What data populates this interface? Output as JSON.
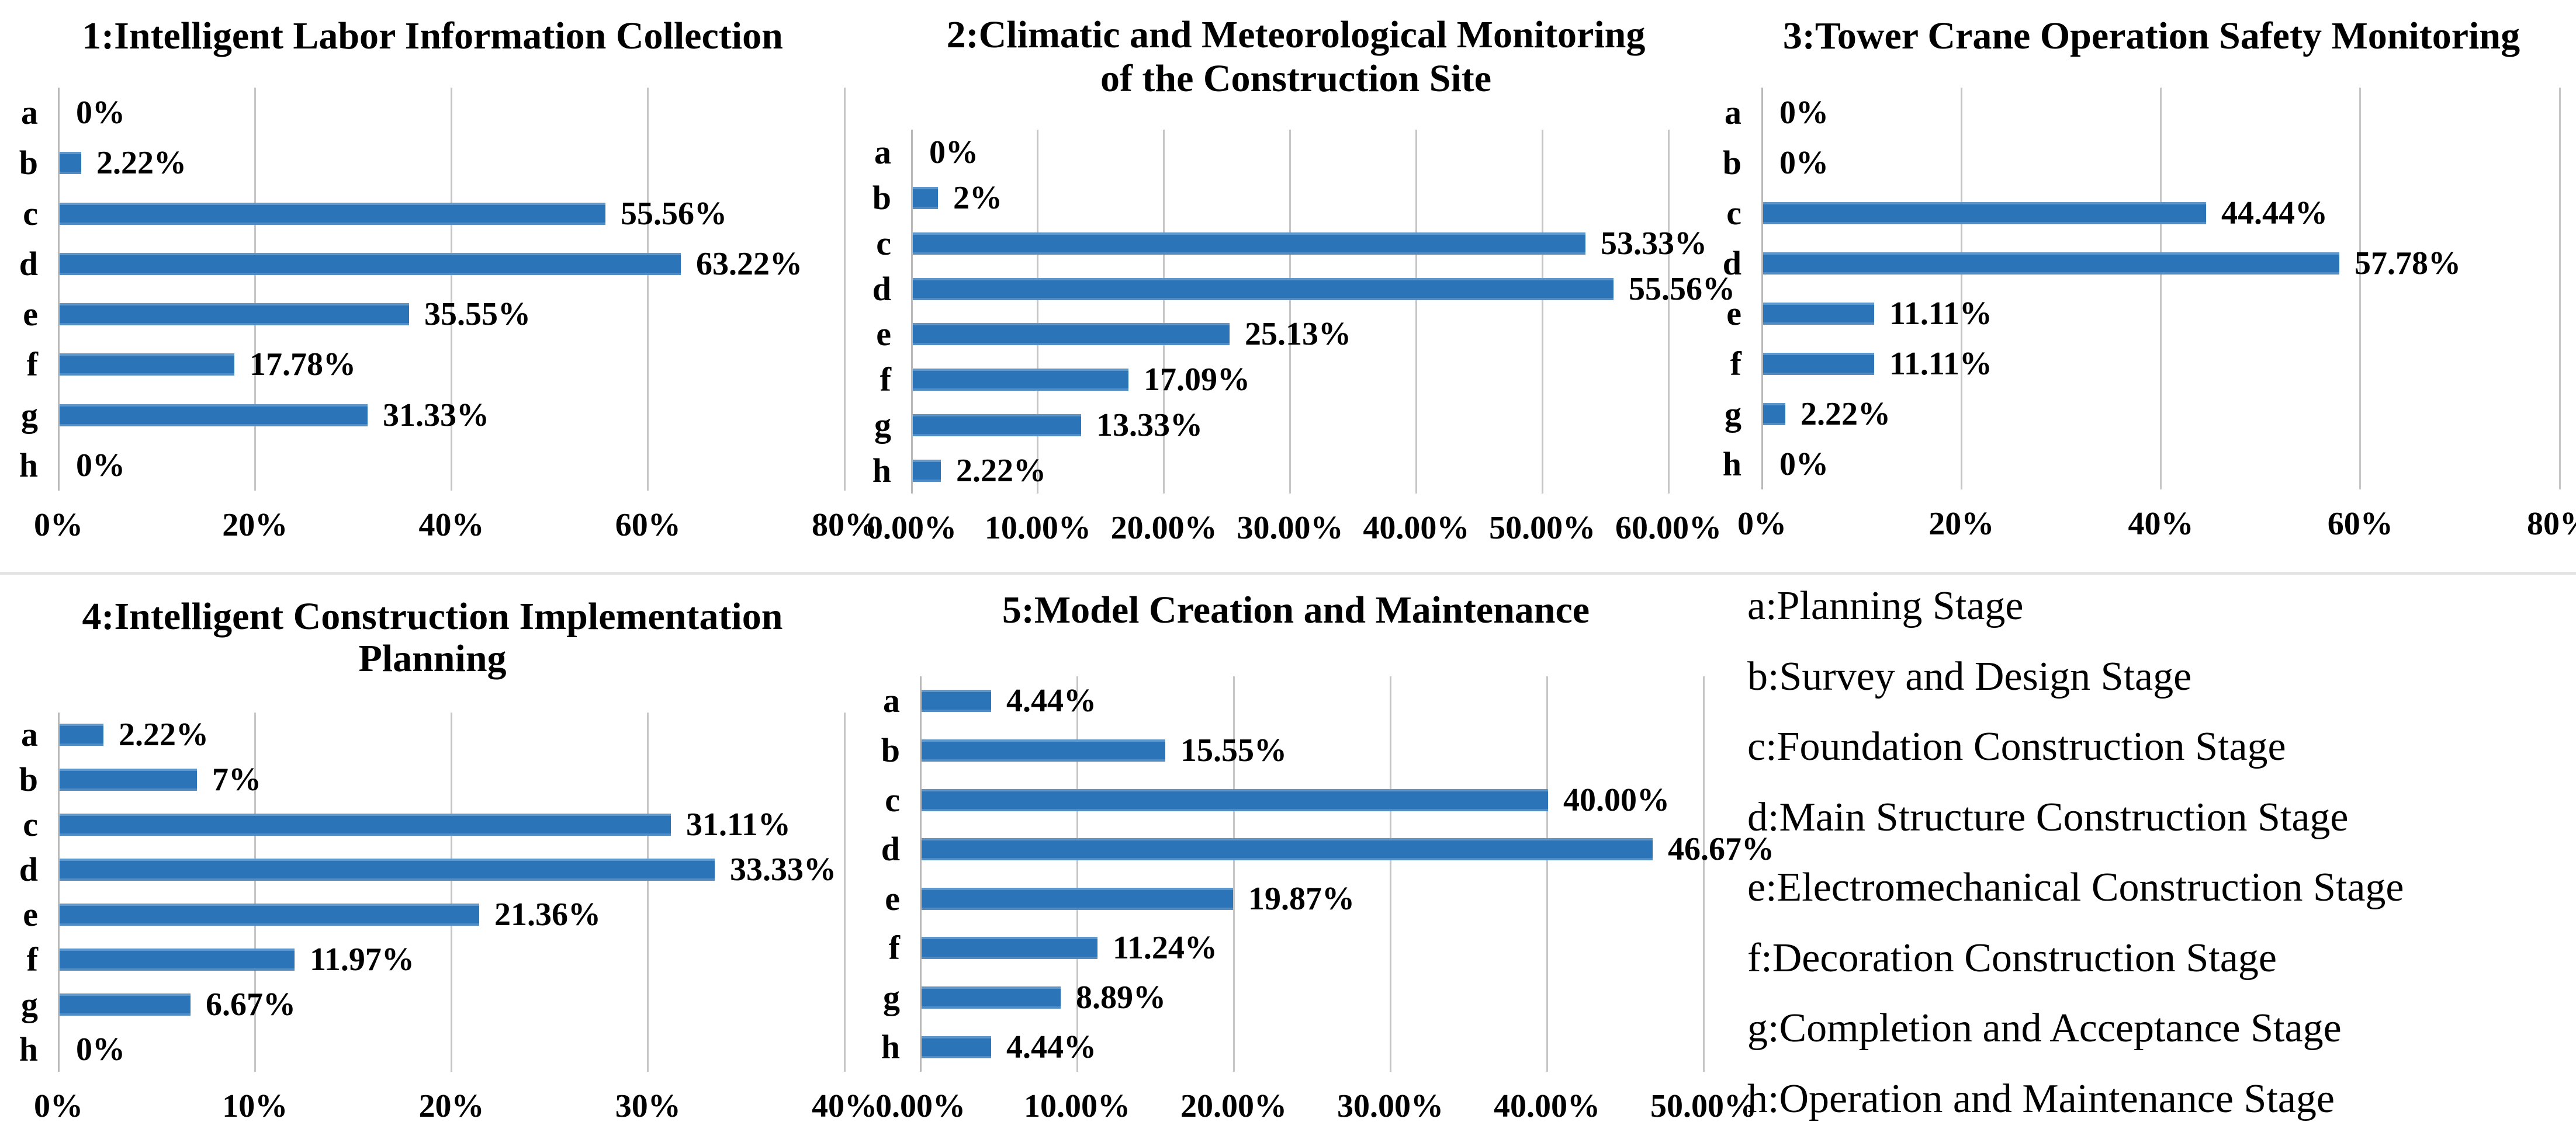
{
  "figure": {
    "background": "#ffffff",
    "divider_color": "#e3e3e3"
  },
  "colors": {
    "bar": "#2b74b8",
    "gridline": "#c6c6c6",
    "axis": "#b9b9b9",
    "text": "#000000"
  },
  "categories": [
    "a",
    "b",
    "c",
    "d",
    "e",
    "f",
    "g",
    "h"
  ],
  "chart_data": [
    {
      "id": 1,
      "type": "bar",
      "orientation": "horizontal",
      "title": "1:Intelligent Labor Information Collection",
      "title_lines": [
        "1:Intelligent Labor Information Collection"
      ],
      "categories": [
        "a",
        "b",
        "c",
        "d",
        "e",
        "f",
        "g",
        "h"
      ],
      "values": [
        0,
        2.22,
        55.56,
        63.22,
        35.55,
        17.78,
        31.33,
        0
      ],
      "value_labels": [
        "0%",
        "2.22%",
        "55.56%",
        "63.22%",
        "35.55%",
        "17.78%",
        "31.33%",
        "0%"
      ],
      "xlim": [
        0,
        80
      ],
      "x_ticks": [
        "0%",
        "20%",
        "40%",
        "60%",
        "80%"
      ],
      "grid": true,
      "legend_position": "none"
    },
    {
      "id": 2,
      "type": "bar",
      "orientation": "horizontal",
      "title": "2:Climatic and Meteorological Monitoring of the Construction Site",
      "title_lines": [
        "2:Climatic and Meteorological Monitoring",
        "of the Construction Site"
      ],
      "categories": [
        "a",
        "b",
        "c",
        "d",
        "e",
        "f",
        "g",
        "h"
      ],
      "values": [
        0,
        2,
        53.33,
        55.56,
        25.13,
        17.09,
        13.33,
        2.22
      ],
      "value_labels": [
        "0%",
        "2%",
        "53.33%",
        "55.56%",
        "25.13%",
        "17.09%",
        "13.33%",
        "2.22%"
      ],
      "xlim": [
        0,
        60
      ],
      "x_ticks": [
        "0.00%",
        "10.00%",
        "20.00%",
        "30.00%",
        "40.00%",
        "50.00%",
        "60.00%"
      ],
      "grid": true,
      "legend_position": "none"
    },
    {
      "id": 3,
      "type": "bar",
      "orientation": "horizontal",
      "title": "3:Tower Crane Operation Safety Monitoring",
      "title_lines": [
        "3:Tower Crane Operation Safety Monitoring"
      ],
      "categories": [
        "a",
        "b",
        "c",
        "d",
        "e",
        "f",
        "g",
        "h"
      ],
      "values": [
        0,
        0,
        44.44,
        57.78,
        11.11,
        11.11,
        2.22,
        0
      ],
      "value_labels": [
        "0%",
        "0%",
        "44.44%",
        "57.78%",
        "11.11%",
        "11.11%",
        "2.22%",
        "0%"
      ],
      "xlim": [
        0,
        80
      ],
      "x_ticks": [
        "0%",
        "20%",
        "40%",
        "60%",
        "80%"
      ],
      "grid": true,
      "legend_position": "none"
    },
    {
      "id": 4,
      "type": "bar",
      "orientation": "horizontal",
      "title": "4:Intelligent Construction Implementation Planning",
      "title_lines": [
        "4:Intelligent Construction Implementation",
        "Planning"
      ],
      "categories": [
        "a",
        "b",
        "c",
        "d",
        "e",
        "f",
        "g",
        "h"
      ],
      "values": [
        2.22,
        7,
        31.11,
        33.33,
        21.36,
        11.97,
        6.67,
        0
      ],
      "value_labels": [
        "2.22%",
        "7%",
        "31.11%",
        "33.33%",
        "21.36%",
        "11.97%",
        "6.67%",
        "0%"
      ],
      "xlim": [
        0,
        40
      ],
      "x_ticks": [
        "0%",
        "10%",
        "20%",
        "30%",
        "40%"
      ],
      "grid": true,
      "legend_position": "none"
    },
    {
      "id": 5,
      "type": "bar",
      "orientation": "horizontal",
      "title": "5:Model Creation and Maintenance",
      "title_lines": [
        "5:Model Creation and Maintenance"
      ],
      "categories": [
        "a",
        "b",
        "c",
        "d",
        "e",
        "f",
        "g",
        "h"
      ],
      "values": [
        4.44,
        15.55,
        40,
        46.67,
        19.87,
        11.24,
        8.89,
        4.44
      ],
      "value_labels": [
        "4.44%",
        "15.55%",
        "40.00%",
        "46.67%",
        "19.87%",
        "11.24%",
        "8.89%",
        "4.44%"
      ],
      "xlim": [
        0,
        50
      ],
      "x_ticks": [
        "0.00%",
        "10.00%",
        "20.00%",
        "30.00%",
        "40.00%",
        "50.00%"
      ],
      "grid": true,
      "legend_position": "none"
    }
  ],
  "legend": {
    "items": [
      "a:Planning Stage",
      "b:Survey and Design Stage",
      "c:Foundation Construction Stage",
      "d:Main Structure Construction Stage",
      "e:Electromechanical Construction Stage",
      "f:Decoration Construction Stage",
      "g:Completion and Acceptance Stage",
      "h:Operation and Maintenance Stage"
    ]
  }
}
